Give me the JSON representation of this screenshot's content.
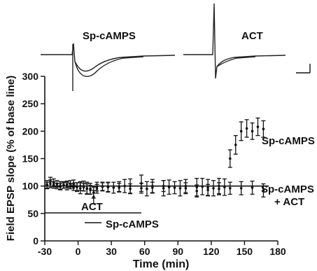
{
  "chart_data": {
    "type": "scatter",
    "xlabel": "Time (min)",
    "ylabel": "Field EPSP slope (% of base line)",
    "xlim": [
      -30,
      180
    ],
    "ylim": [
      0,
      300
    ],
    "xticks": [
      -30,
      0,
      30,
      60,
      90,
      120,
      150,
      180
    ],
    "yticks": [
      0,
      50,
      100,
      150,
      200,
      250,
      300
    ],
    "inset_labels": [
      "Sp-cAMPS",
      "ACT"
    ],
    "application_bars": [
      {
        "label": "ACT",
        "x": [
          -30,
          57
        ]
      },
      {
        "label": "Sp-cAMPS",
        "x": [
          0,
          57
        ]
      }
    ],
    "series": [
      {
        "name": "Sp-cAMPS",
        "x": [
          -28,
          -25,
          -22,
          -19,
          -16,
          -13,
          -10,
          -7,
          -4,
          -1,
          2,
          5,
          8,
          11,
          14,
          17,
          22,
          27,
          32,
          37,
          42,
          47,
          57,
          62,
          67,
          77,
          82,
          92,
          97,
          107,
          112,
          117,
          122,
          127,
          132,
          137,
          142,
          147,
          152,
          157,
          162,
          167
        ],
        "y": [
          103,
          108,
          106,
          104,
          101,
          102,
          100,
          104,
          105,
          98,
          96,
          100,
          96,
          95,
          80,
          99,
          99,
          98,
          97,
          99,
          100,
          100,
          105,
          95,
          100,
          96,
          98,
          96,
          100,
          98,
          99,
          97,
          96,
          100,
          98,
          150,
          175,
          200,
          205,
          200,
          208,
          204
        ],
        "err": [
          7,
          8,
          7,
          6,
          7,
          6,
          7,
          6,
          6,
          8,
          10,
          9,
          11,
          10,
          12,
          8,
          8,
          9,
          10,
          9,
          12,
          13,
          15,
          13,
          12,
          14,
          13,
          14,
          12,
          16,
          15,
          15,
          14,
          14,
          15,
          16,
          17,
          17,
          16,
          15,
          16,
          15
        ]
      },
      {
        "name": "Sp-cAMPS + ACT",
        "x": [
          -28,
          -25,
          -22,
          -19,
          -16,
          -13,
          -10,
          -7,
          -4,
          -1,
          2,
          5,
          8,
          11,
          14,
          17,
          22,
          27,
          37,
          47,
          57,
          67,
          77,
          87,
          97,
          107,
          117,
          127,
          137,
          147,
          157,
          167
        ],
        "y": [
          101,
          104,
          102,
          100,
          99,
          101,
          103,
          100,
          97,
          99,
          100,
          98,
          95,
          93,
          88,
          95,
          99,
          98,
          97,
          95,
          96,
          97,
          100,
          97,
          96,
          91,
          93,
          95,
          96,
          96,
          97,
          92
        ],
        "err": [
          6,
          7,
          6,
          5,
          6,
          5,
          6,
          5,
          5,
          7,
          8,
          7,
          9,
          8,
          10,
          8,
          7,
          8,
          8,
          9,
          9,
          10,
          10,
          11,
          10,
          11,
          10,
          11,
          11,
          12,
          12,
          12
        ]
      }
    ],
    "reference_line": {
      "y": 100,
      "x": [
        -30,
        172
      ]
    }
  }
}
